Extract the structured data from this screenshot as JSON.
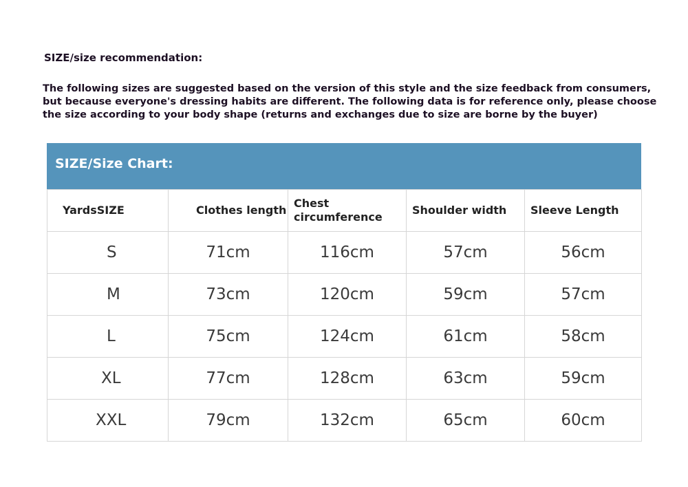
{
  "recommendation_title": "SIZE/size recommendation:",
  "note": "The following sizes are suggested based on the version of this style and the size feedback from consumers, but because everyone's dressing habits are different. The following data is for reference only, please choose the size according to your body shape (returns and exchanges due to size are borne by the buyer)",
  "chart_title": "SIZE/Size Chart:",
  "header_color": "#5594bb",
  "columns": [
    "YardsSIZE",
    "Clothes length",
    "Chest circumference",
    "Shoulder width",
    "Sleeve Length"
  ],
  "rows": [
    [
      "S",
      "71cm",
      "116cm",
      "57cm",
      "56cm"
    ],
    [
      "M",
      "73cm",
      "120cm",
      "59cm",
      "57cm"
    ],
    [
      "L",
      "75cm",
      "124cm",
      "61cm",
      "58cm"
    ],
    [
      "XL",
      "77cm",
      "128cm",
      "63cm",
      "59cm"
    ],
    [
      "XXL",
      "79cm",
      "132cm",
      "65cm",
      "60cm"
    ]
  ]
}
